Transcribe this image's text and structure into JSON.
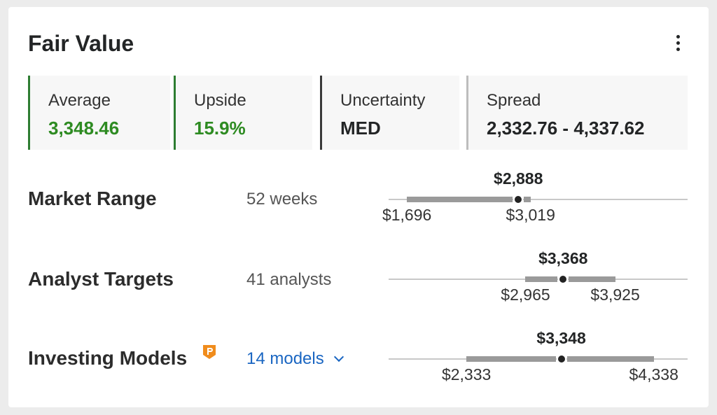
{
  "card": {
    "title": "Fair Value",
    "menu_icon": "more-vertical-icon"
  },
  "stats": {
    "average": {
      "label": "Average",
      "value": "3,348.46",
      "color": "#2e8b22"
    },
    "upside": {
      "label": "Upside",
      "value": "15.9%",
      "color": "#2e8b22"
    },
    "uncertainty": {
      "label": "Uncertainty",
      "value": "MED"
    },
    "spread": {
      "label": "Spread",
      "value": "2,332.76 - 4,337.62"
    }
  },
  "rows": {
    "market_range": {
      "label": "Market Range",
      "sub": "52 weeks",
      "low": 1696,
      "high": 3019,
      "current": 2888,
      "low_label": "$1,696",
      "high_label": "$3,019",
      "current_label": "$2,888"
    },
    "analyst_targets": {
      "label": "Analyst Targets",
      "sub": "41 analysts",
      "low": 2965,
      "high": 3925,
      "current": 3368,
      "low_label": "$2,965",
      "high_label": "$3,925",
      "current_label": "$3,368"
    },
    "investing_models": {
      "label": "Investing Models",
      "pro_icon": "pro-badge-icon",
      "sub": "14 models",
      "sub_icon": "chevron-down-icon",
      "low": 2333,
      "high": 4338,
      "current": 3348,
      "low_label": "$2,333",
      "high_label": "$4,338",
      "current_label": "$3,348"
    }
  },
  "scale": {
    "min": 1500,
    "max": 4700
  },
  "colors": {
    "accent_green": "#2e8b22",
    "link_blue": "#1a66c2",
    "band_grey": "#9a9a9a",
    "pro_orange": "#f08c1c"
  }
}
